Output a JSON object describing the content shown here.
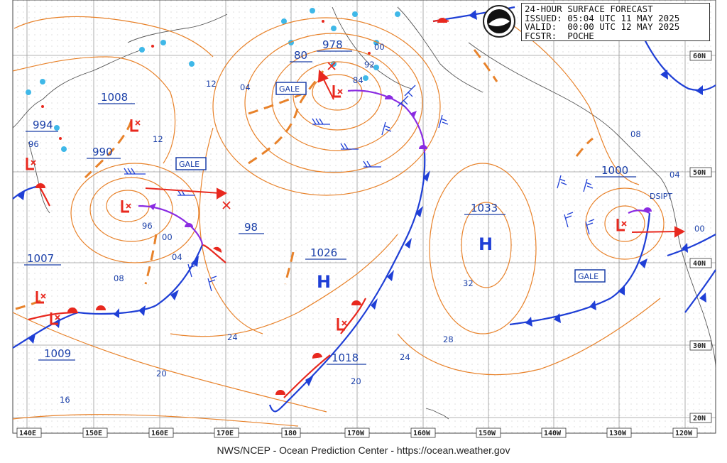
{
  "header": {
    "line1": "24-HOUR SURFACE FORECAST",
    "line2": "ISSUED: 05:04 UTC 11 MAY 2025",
    "line3": "VALID:  00:00 UTC 12 MAY 2025",
    "line4": "FCSTR:  POCHE"
  },
  "footer": "NWS/NCEP - Ocean Prediction Center - https://ocean.weather.gov",
  "longitude_labels": [
    "140E",
    "150E",
    "160E",
    "170E",
    "180",
    "170W",
    "160W",
    "150W",
    "140W",
    "130W",
    "120W"
  ],
  "latitude_labels": [
    "60N",
    "50N",
    "40N",
    "30N",
    "20N"
  ],
  "pressure_values": [
    "1008",
    "994",
    "990",
    "1007",
    "1009",
    "98",
    "1026",
    "1018",
    "1033",
    "1000",
    "978",
    "80",
    "84",
    "92",
    "00"
  ],
  "isobar_labels": [
    "12",
    "04",
    "12",
    "96",
    "96",
    "00",
    "04",
    "08",
    "24",
    "20",
    "16",
    "20",
    "24",
    "28",
    "32",
    "08",
    "04",
    "00"
  ],
  "warnings": [
    "GALE",
    "GALE",
    "GALE"
  ],
  "dsipt": "DSIPT",
  "high_symbol": "H",
  "colors": {
    "isobar": "#e8822a",
    "warm_front": "#e8281e",
    "cold_front": "#1f3fd6",
    "occluded": "#8a2be2",
    "text": "#1a3fa8",
    "coast": "#555555"
  }
}
